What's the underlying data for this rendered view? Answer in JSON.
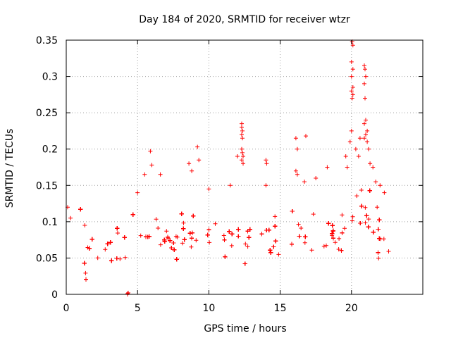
{
  "chart_data": {
    "type": "scatter",
    "title": "Day 184 of 2020, SRMTID for receiver wtzr",
    "xlabel": "GPS time / hours",
    "ylabel": "SRMTID / TECUs",
    "xlim": [
      0,
      25
    ],
    "ylim": [
      0,
      0.35
    ],
    "xticks": [
      0,
      5,
      10,
      15,
      20
    ],
    "xtick_labels": [
      "0",
      "5",
      "10",
      "15",
      "20"
    ],
    "yticks": [
      0,
      0.05,
      0.1,
      0.15,
      0.2,
      0.25,
      0.3,
      0.35
    ],
    "ytick_labels": [
      "0",
      "0.05",
      "0.1",
      "0.15",
      "0.2",
      "0.25",
      "0.3",
      "0.35"
    ],
    "grid": true,
    "marker": "plus",
    "series": [
      {
        "name": "SRMTID",
        "color": "#ff0000",
        "baseline": [
          [
            0.0,
            0.065
          ],
          [
            0.5,
            0.06
          ],
          [
            1.0,
            0.045
          ],
          [
            1.5,
            0.05
          ],
          [
            2.0,
            0.065
          ],
          [
            2.5,
            0.06
          ],
          [
            3.0,
            0.065
          ],
          [
            3.5,
            0.06
          ],
          [
            4.0,
            0.06
          ],
          [
            4.5,
            0.05
          ],
          [
            5.0,
            0.085
          ],
          [
            5.5,
            0.085
          ],
          [
            6.0,
            0.08
          ],
          [
            6.5,
            0.075
          ],
          [
            7.0,
            0.065
          ],
          [
            7.5,
            0.06
          ],
          [
            8.0,
            0.07
          ],
          [
            8.5,
            0.085
          ],
          [
            9.0,
            0.09
          ],
          [
            9.5,
            0.075
          ],
          [
            10.0,
            0.065
          ],
          [
            10.5,
            0.065
          ],
          [
            11.0,
            0.07
          ],
          [
            11.5,
            0.07
          ],
          [
            12.0,
            0.07
          ],
          [
            12.5,
            0.065
          ],
          [
            13.0,
            0.07
          ],
          [
            13.5,
            0.075
          ],
          [
            14.0,
            0.075
          ],
          [
            14.5,
            0.07
          ],
          [
            15.0,
            0.075
          ],
          [
            15.5,
            0.075
          ],
          [
            16.0,
            0.075
          ],
          [
            16.5,
            0.075
          ],
          [
            17.0,
            0.08
          ],
          [
            17.5,
            0.085
          ],
          [
            18.0,
            0.09
          ],
          [
            18.5,
            0.07
          ],
          [
            19.0,
            0.075
          ],
          [
            19.5,
            0.09
          ],
          [
            20.0,
            0.1
          ],
          [
            20.5,
            0.12
          ],
          [
            21.0,
            0.11
          ],
          [
            21.5,
            0.09
          ],
          [
            22.0,
            0.075
          ],
          [
            22.5,
            0.065
          ],
          [
            22.8,
            0.065
          ]
        ],
        "spread": 0.022,
        "x_range": [
          0.0,
          22.8
        ],
        "n_points": 2200,
        "outliers": [
          [
            0.1,
            0.12
          ],
          [
            0.3,
            0.105
          ],
          [
            1.3,
            0.095
          ],
          [
            4.3,
            0.0
          ],
          [
            4.35,
            0.002
          ],
          [
            4.3,
            0.001
          ],
          [
            5.0,
            0.14
          ],
          [
            5.5,
            0.165
          ],
          [
            5.9,
            0.197
          ],
          [
            6.0,
            0.178
          ],
          [
            6.6,
            0.165
          ],
          [
            8.6,
            0.18
          ],
          [
            8.8,
            0.17
          ],
          [
            9.2,
            0.203
          ],
          [
            9.3,
            0.185
          ],
          [
            10.0,
            0.145
          ],
          [
            11.5,
            0.15
          ],
          [
            12.0,
            0.19
          ],
          [
            12.3,
            0.235
          ],
          [
            12.3,
            0.23
          ],
          [
            12.35,
            0.225
          ],
          [
            12.3,
            0.22
          ],
          [
            12.35,
            0.215
          ],
          [
            12.3,
            0.2
          ],
          [
            12.35,
            0.195
          ],
          [
            12.4,
            0.19
          ],
          [
            12.3,
            0.185
          ],
          [
            12.4,
            0.18
          ],
          [
            14.0,
            0.185
          ],
          [
            14.05,
            0.18
          ],
          [
            14.0,
            0.15
          ],
          [
            16.1,
            0.215
          ],
          [
            16.2,
            0.2
          ],
          [
            16.1,
            0.17
          ],
          [
            16.2,
            0.165
          ],
          [
            16.8,
            0.218
          ],
          [
            16.7,
            0.155
          ],
          [
            17.5,
            0.16
          ],
          [
            18.3,
            0.175
          ],
          [
            19.6,
            0.19
          ],
          [
            19.7,
            0.175
          ],
          [
            19.9,
            0.21
          ],
          [
            20.0,
            0.225
          ],
          [
            20.05,
            0.348
          ],
          [
            20.1,
            0.343
          ],
          [
            20.0,
            0.32
          ],
          [
            20.1,
            0.31
          ],
          [
            20.0,
            0.3
          ],
          [
            20.1,
            0.285
          ],
          [
            20.0,
            0.28
          ],
          [
            20.1,
            0.275
          ],
          [
            20.05,
            0.27
          ],
          [
            20.3,
            0.2
          ],
          [
            20.6,
            0.215
          ],
          [
            20.5,
            0.19
          ],
          [
            20.9,
            0.315
          ],
          [
            20.95,
            0.31
          ],
          [
            21.0,
            0.3
          ],
          [
            20.9,
            0.29
          ],
          [
            20.95,
            0.27
          ],
          [
            21.0,
            0.24
          ],
          [
            20.9,
            0.235
          ],
          [
            21.1,
            0.225
          ],
          [
            21.0,
            0.22
          ],
          [
            20.9,
            0.215
          ],
          [
            21.1,
            0.21
          ],
          [
            21.2,
            0.2
          ],
          [
            21.3,
            0.18
          ],
          [
            21.5,
            0.175
          ],
          [
            21.7,
            0.155
          ],
          [
            22.0,
            0.15
          ],
          [
            22.3,
            0.14
          ],
          [
            21.8,
            0.12
          ]
        ]
      }
    ]
  }
}
